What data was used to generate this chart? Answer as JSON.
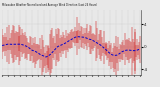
{
  "title": "Milwaukee Weather Normalized and Average Wind Direction (Last 24 Hours)",
  "background_color": "#e8e8e8",
  "plot_bg_color": "#e8e8e8",
  "grid_color": "#aaaaaa",
  "bar_color": "#cc0000",
  "line_color": "#0000cc",
  "n_points": 144,
  "ylim": [
    -5.0,
    6.5
  ],
  "yticks": [
    -4,
    0,
    4
  ],
  "ytick_labels": [
    "-4",
    "0",
    "4"
  ],
  "seed": 7
}
